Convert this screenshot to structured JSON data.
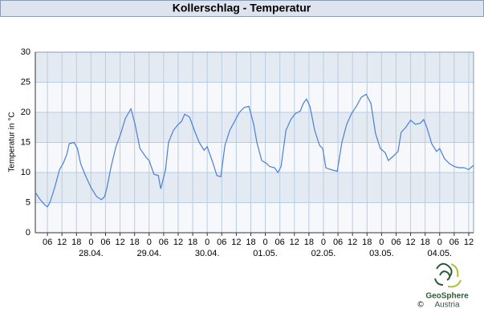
{
  "chart_data": {
    "type": "line",
    "title": "Kollerschlag - Temperatur",
    "y_label": "Temperatur in °C",
    "ylim": [
      0,
      30
    ],
    "yticks": [
      0,
      5,
      10,
      15,
      20,
      25,
      30
    ],
    "xlim": [
      -23,
      158
    ],
    "xticks": [
      {
        "value": -18,
        "label": "06"
      },
      {
        "value": -12,
        "label": "12"
      },
      {
        "value": -6,
        "label": "18"
      },
      0,
      {
        "value": 6,
        "label": "06"
      },
      {
        "value": 12,
        "label": "12"
      },
      {
        "value": 18,
        "label": "18"
      },
      {
        "value": 24,
        "label": "0"
      },
      {
        "value": 30,
        "label": "06"
      },
      {
        "value": 36,
        "label": "12"
      },
      {
        "value": 42,
        "label": "18"
      },
      {
        "value": 48,
        "label": "0"
      },
      {
        "value": 54,
        "label": "06"
      },
      {
        "value": 60,
        "label": "12"
      },
      {
        "value": 66,
        "label": "18"
      },
      {
        "value": 72,
        "label": "0"
      },
      {
        "value": 78,
        "label": "06"
      },
      {
        "value": 84,
        "label": "12"
      },
      {
        "value": 90,
        "label": "18"
      },
      {
        "value": 96,
        "label": "0"
      },
      {
        "value": 102,
        "label": "06"
      },
      {
        "value": 108,
        "label": "12"
      },
      {
        "value": 114,
        "label": "18"
      },
      {
        "value": 120,
        "label": "0"
      },
      {
        "value": 126,
        "label": "06"
      },
      {
        "value": 132,
        "label": "12"
      },
      {
        "value": 138,
        "label": "18"
      },
      {
        "value": 144,
        "label": "0"
      },
      {
        "value": 150,
        "label": "06"
      },
      {
        "value": 156,
        "label": "12"
      }
    ],
    "date_ticks": [
      {
        "value": 0,
        "label": "28.04."
      },
      {
        "value": 24,
        "label": "29.04."
      },
      {
        "value": 48,
        "label": "30.04."
      },
      {
        "value": 72,
        "label": "01.05."
      },
      {
        "value": 96,
        "label": "02.05."
      },
      {
        "value": 120,
        "label": "03.05."
      },
      {
        "value": 144,
        "label": "04.05."
      }
    ],
    "grid": true,
    "bands": [
      "#e4eaf2",
      "#f6f8fb"
    ],
    "color": "#4a7fd9",
    "x": [
      -23,
      -21,
      -19,
      -18,
      -17,
      -15,
      -13,
      -11.5,
      -10,
      -9,
      -7,
      -5.6,
      -4.3,
      -2.3,
      0,
      2.3,
      4.3,
      5.6,
      6.6,
      8.3,
      10.3,
      12.3,
      14.2,
      16.5,
      18.2,
      20.2,
      22.8,
      24,
      26,
      27.8,
      28.8,
      30.8,
      32,
      34,
      36,
      37.4,
      38.7,
      40.7,
      42.7,
      44.7,
      46.7,
      48,
      50,
      52,
      53.6,
      55.3,
      57.3,
      59.3,
      61.3,
      63.2,
      65.2,
      67.2,
      68.5,
      70.5,
      72.5,
      73.8,
      75.8,
      77.2,
      78.5,
      80.5,
      82.5,
      84.4,
      86.4,
      87.7,
      89,
      90.4,
      92.4,
      94.4,
      95.7,
      97,
      99,
      101.7,
      103.6,
      105.6,
      107.6,
      109.6,
      111.6,
      113.6,
      115.6,
      117.5,
      119.5,
      121.5,
      122.8,
      124.8,
      126.8,
      128.1,
      130,
      132,
      134,
      136,
      137.4,
      138.7,
      140.7,
      142.7,
      144,
      146,
      148,
      150,
      152,
      154,
      156,
      158
    ],
    "values": [
      6.7,
      5.5,
      4.6,
      4.3,
      5,
      7.5,
      10.5,
      11.5,
      13,
      14.8,
      15,
      14,
      11.5,
      9.5,
      7.5,
      6,
      5.5,
      6,
      7.5,
      11,
      14.3,
      16.5,
      19,
      20.6,
      18,
      14,
      12.5,
      12,
      9.7,
      9.5,
      7.3,
      10.5,
      15,
      17,
      18,
      18.5,
      19.7,
      19.2,
      17,
      15,
      13.7,
      14.3,
      12,
      9.5,
      9.3,
      14.5,
      17,
      18.5,
      20,
      20.8,
      21,
      18,
      15,
      12,
      11.5,
      11,
      10.8,
      10,
      11,
      17,
      18.8,
      19.8,
      20.2,
      21.5,
      22.2,
      21,
      17,
      14.5,
      14,
      10.8,
      10.5,
      10.2,
      15,
      18,
      19.8,
      21,
      22.5,
      23,
      21.5,
      16.5,
      14,
      13.3,
      12,
      12.7,
      13.5,
      16.7,
      17.5,
      18.7,
      18,
      18.2,
      18.8,
      17.5,
      14.8,
      13.5,
      14,
      12.3,
      11.5,
      11,
      10.8,
      10.8,
      10.5,
      11.2
    ]
  },
  "logo": {
    "name": "GeoSphere",
    "sub": "Austria",
    "copyright": "©"
  }
}
